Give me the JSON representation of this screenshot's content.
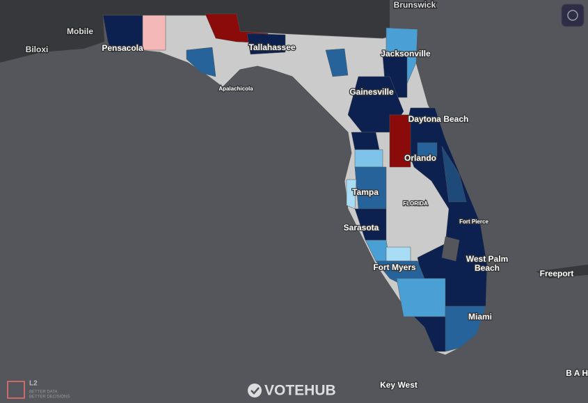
{
  "map": {
    "labels": [
      "Brunswick",
      "Mobile",
      "Biloxi",
      "Pensacola",
      "Tallahassee",
      "Apalachicola",
      "Jacksonville",
      "Gainesville",
      "Daytona Beach",
      "Orlando",
      "Tampa",
      "FLORIDA",
      "Fort Pierce",
      "Sarasota",
      "West Palm",
      "Beach",
      "Fort Myers",
      "Freeport",
      "Miami",
      "Key West",
      "B A H"
    ]
  },
  "branding": {
    "logo": "L2",
    "tagline": [
      "BETTER DATA",
      "BETTER DECISIONS"
    ],
    "brand": "VOTEHUB"
  }
}
